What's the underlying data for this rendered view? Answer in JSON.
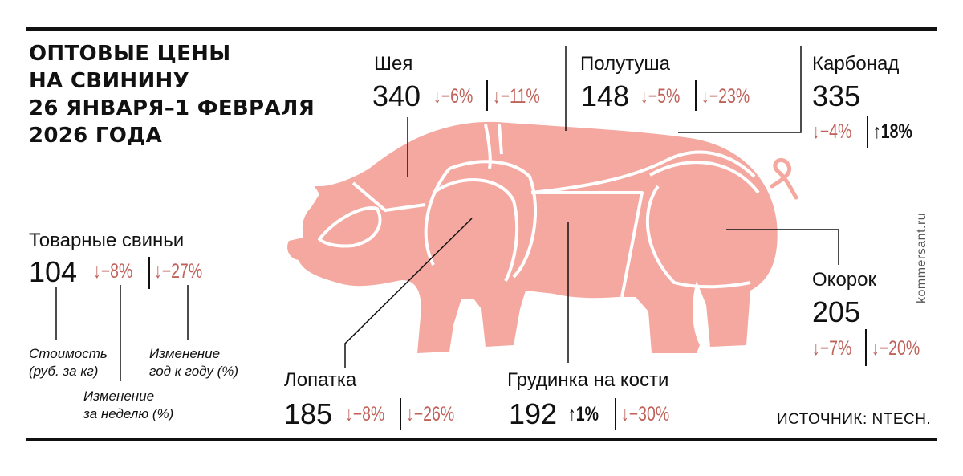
{
  "title": {
    "lines": [
      "ОПТОВЫЕ ЦЕНЫ",
      "НА СВИНИНУ",
      "26 ЯНВАРЯ–1 ФЕВРАЛЯ",
      "2026 ГОДА"
    ]
  },
  "arrows": {
    "down": "↓",
    "up": "↑"
  },
  "cuts": {
    "sheya": {
      "label": "Шея",
      "price": "340",
      "week": "−6%",
      "week_dir": "down",
      "year": "−11%",
      "year_dir": "down"
    },
    "polutusha": {
      "label": "Полутуша",
      "price": "148",
      "week": "−5%",
      "week_dir": "down",
      "year": "−23%",
      "year_dir": "down"
    },
    "karbonad": {
      "label": "Карбонад",
      "price": "335",
      "week": "−4%",
      "week_dir": "down",
      "year": "18%",
      "year_dir": "up"
    },
    "tovarnye": {
      "label": "Товарные свиньи",
      "price": "104",
      "week": "−8%",
      "week_dir": "down",
      "year": "−27%",
      "year_dir": "down"
    },
    "okorok": {
      "label": "Окорок",
      "price": "205",
      "week": "−7%",
      "week_dir": "down",
      "year": "−20%",
      "year_dir": "down"
    },
    "lopatka": {
      "label": "Лопатка",
      "price": "185",
      "week": "−8%",
      "week_dir": "down",
      "year": "−26%",
      "year_dir": "down"
    },
    "grudinka": {
      "label": "Грудинка на кости",
      "price": "192",
      "week": "1%",
      "week_dir": "up",
      "year": "−30%",
      "year_dir": "down"
    }
  },
  "legend": {
    "cost": [
      "Стоимость",
      "(руб. за кг)"
    ],
    "week": [
      "Изменение",
      "за неделю (%)"
    ],
    "year": [
      "Изменение",
      "год к году (%)"
    ]
  },
  "source": "ИСТОЧНИК: NTECH.",
  "watermark": "kommersant.ru",
  "colors": {
    "pig": "#f4a8a0",
    "down": "#c0625a",
    "text": "#111111"
  }
}
